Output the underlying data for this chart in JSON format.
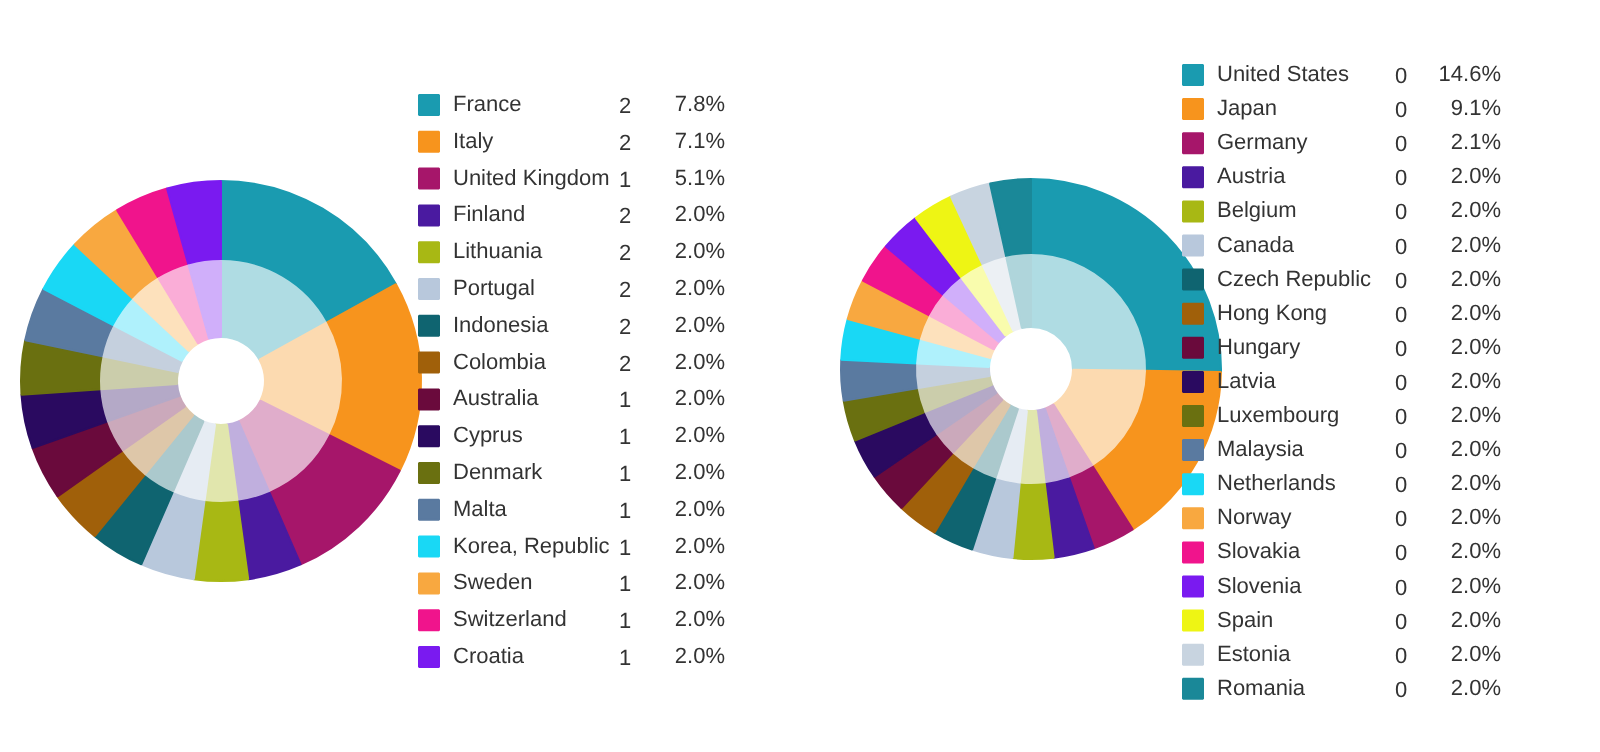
{
  "chart_data": [
    {
      "type": "donut",
      "legend": "right",
      "categories": [
        "France",
        "Italy",
        "United Kingdom",
        "Finland",
        "Lithuania",
        "Portugal",
        "Indonesia",
        "Colombia",
        "Australia",
        "Cyprus",
        "Denmark",
        "Malta",
        "Korea, Republic",
        "Sweden",
        "Switzerland",
        "Croatia"
      ],
      "series": [
        {
          "values": [
            7.8,
            7.1,
            5.1,
            2.0,
            2.0,
            2.0,
            2.0,
            2.0,
            2.0,
            2.0,
            2.0,
            2.0,
            2.0,
            2.0,
            2.0,
            2.0
          ],
          "value_labels": [
            "7.8%",
            "7.1%",
            "5.1%",
            "2.0%",
            "2.0%",
            "2.0%",
            "2.0%",
            "2.0%",
            "2.0%",
            "2.0%",
            "2.0%",
            "2.0%",
            "2.0%",
            "2.0%",
            "2.0%",
            "2.0%"
          ],
          "colors": [
            "#1a9bb0",
            "#f7941d",
            "#a6166a",
            "#4a1aa0",
            "#a8b814",
            "#b8c8dc",
            "#0f6470",
            "#a0600a",
            "#6a0a3c",
            "#2a0a60",
            "#6a7010",
            "#5a7aa0",
            "#19d8f5",
            "#f8a840",
            "#f0148c",
            "#7a1af0"
          ]
        },
        {
          "values": [
            16.96,
            15.43,
            11.09,
            4.35,
            4.35,
            4.35,
            4.35,
            4.35,
            4.35,
            4.35,
            4.35,
            4.35,
            4.35,
            4.35,
            4.35,
            4.35
          ],
          "colors": [
            "#afdce3",
            "#fcdab0",
            "#e0adcb",
            "#c0afde",
            "#e1e6ad",
            "#e6ecf3",
            "#abc9cd",
            "#dec7a9",
            "#cba9bb",
            "#b4a9c7",
            "#cbcdab",
            "#c5d0de",
            "#aff1fc",
            "#fde1bc",
            "#faadd7",
            "#d0affa"
          ]
        }
      ],
      "annotations": [
        "2",
        "2",
        "1",
        "2",
        "2",
        "2",
        "2",
        "2",
        "1",
        "1",
        "1",
        "1",
        "1",
        "1",
        "1",
        "1"
      ]
    },
    {
      "type": "donut",
      "legend": "right",
      "categories": [
        "United States",
        "Japan",
        "Germany",
        "Austria",
        "Belgium",
        "Canada",
        "Czech Republic",
        "Hong Kong",
        "Hungary",
        "Latvia",
        "Luxembourg",
        "Malaysia",
        "Netherlands",
        "Norway",
        "Slovakia",
        "Slovenia",
        "Spain",
        "Estonia",
        "Romania"
      ],
      "series": [
        {
          "values": [
            14.6,
            9.1,
            2.1,
            2.0,
            2.0,
            2.0,
            2.0,
            2.0,
            2.0,
            2.0,
            2.0,
            2.0,
            2.0,
            2.0,
            2.0,
            2.0,
            2.0,
            2.0,
            2.0
          ],
          "value_labels": [
            "14.6%",
            "9.1%",
            "2.1%",
            "2.0%",
            "2.0%",
            "2.0%",
            "2.0%",
            "2.0%",
            "2.0%",
            "2.0%",
            "2.0%",
            "2.0%",
            "2.0%",
            "2.0%",
            "2.0%",
            "2.0%",
            "2.0%",
            "2.0%",
            "2.0%"
          ],
          "colors": [
            "#1a9bb0",
            "#f7941d",
            "#a6166a",
            "#4a1aa0",
            "#a8b814",
            "#b8c8dc",
            "#0f6470",
            "#a0600a",
            "#6a0a3c",
            "#2a0a60",
            "#6a7010",
            "#5a7aa0",
            "#19d8f5",
            "#f8a840",
            "#f0148c",
            "#7a1af0",
            "#eef514",
            "#c8d4e0",
            "#1a8898"
          ]
        },
        {
          "values": [
            25.26,
            15.74,
            3.64,
            3.46,
            3.46,
            3.46,
            3.46,
            3.46,
            3.46,
            3.46,
            3.46,
            3.46,
            3.46,
            3.46,
            3.46,
            3.46,
            3.46,
            3.46,
            3.46
          ],
          "colors": [
            "#afdce3",
            "#fcdab0",
            "#e0adcb",
            "#c0afde",
            "#e1e6ad",
            "#e6ecf3",
            "#abc9cd",
            "#dec7a9",
            "#cba9bb",
            "#b4a9c7",
            "#cbcdab",
            "#c5d0de",
            "#aff1fc",
            "#fde1bc",
            "#faadd7",
            "#d0affa",
            "#f9fcad",
            "#ecf0f4",
            "#afd5db"
          ]
        }
      ],
      "annotations": [
        "0",
        "0",
        "0",
        "0",
        "0",
        "0",
        "0",
        "0",
        "0",
        "0",
        "0",
        "0",
        "0",
        "0",
        "0",
        "0",
        "0",
        "0",
        "0"
      ]
    }
  ]
}
